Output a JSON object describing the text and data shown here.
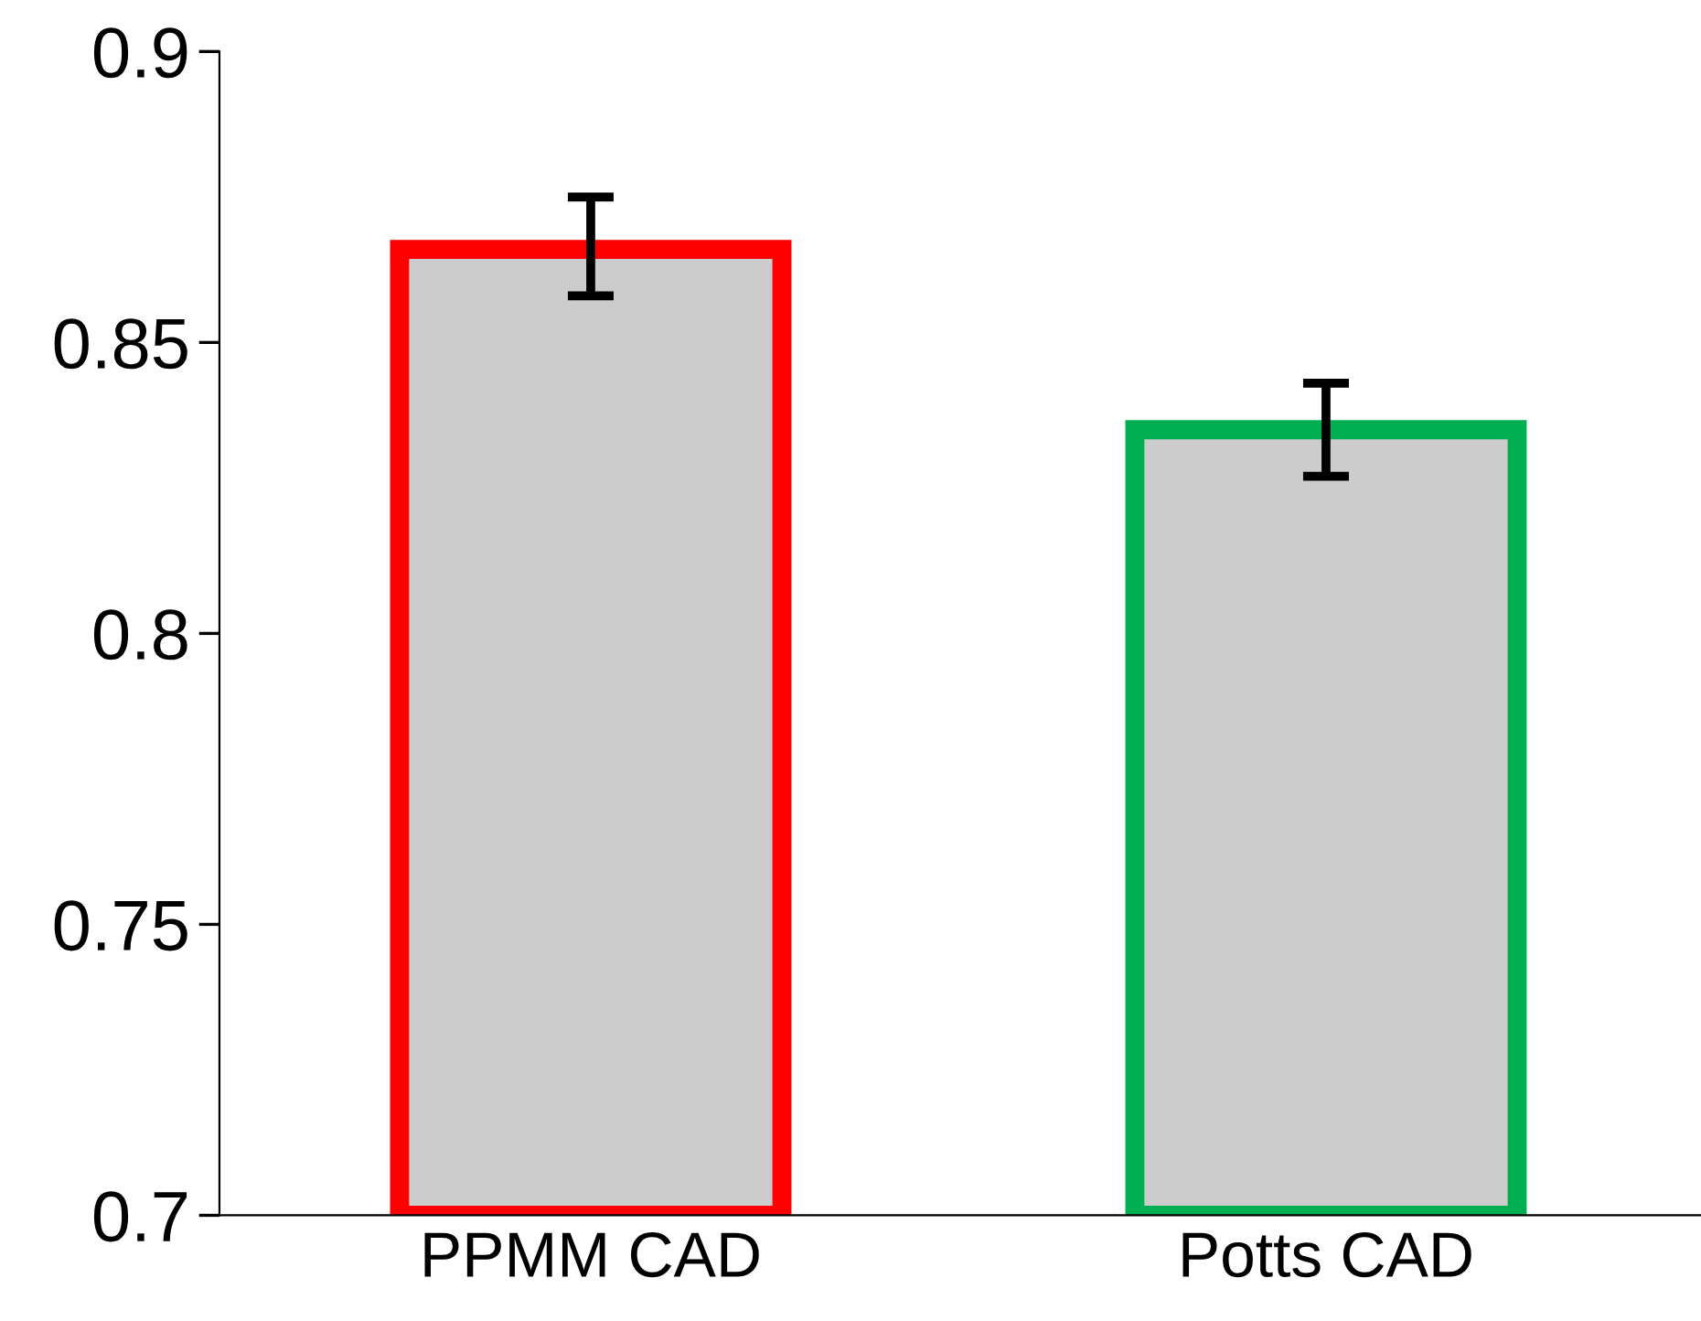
{
  "chart_data": {
    "type": "bar",
    "categories": [
      "PPMM CAD",
      "Potts CAD"
    ],
    "values": [
      0.866,
      0.835
    ],
    "errors": [
      [
        0.858,
        0.875
      ],
      [
        0.827,
        0.843
      ]
    ],
    "color": "#cccccc",
    "colors": [
      "#ff0000",
      "#00b050"
    ],
    "ylim": [
      0.7,
      0.9
    ],
    "yticks": [
      0.7,
      0.75,
      0.8,
      0.85,
      0.9
    ],
    "grid": false
  }
}
